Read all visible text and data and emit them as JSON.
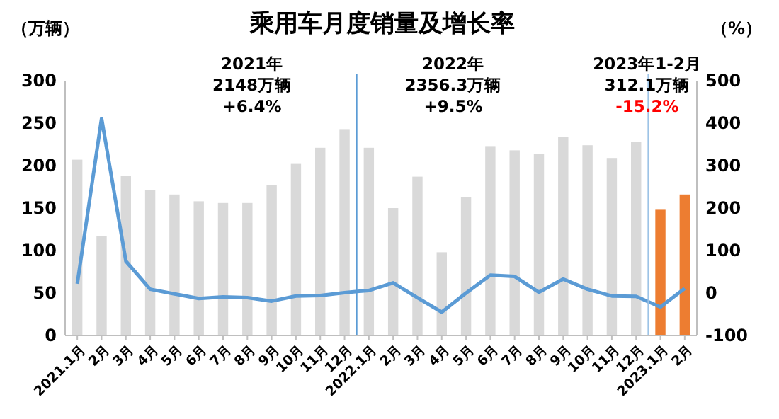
{
  "chart_data": {
    "type": "bar",
    "title": "乘用车月度销量及增长率",
    "ylabel": "（万辆）",
    "y2label": "（%）",
    "categories": [
      "2021.1月",
      "2月",
      "3月",
      "4月",
      "5月",
      "6月",
      "7月",
      "8月",
      "9月",
      "10月",
      "11月",
      "12月",
      "2022.1月",
      "2月",
      "3月",
      "4月",
      "5月",
      "6月",
      "7月",
      "8月",
      "9月",
      "10月",
      "11月",
      "12月",
      "2023.1月",
      "2月"
    ],
    "series": [
      {
        "values": [
          207,
          117,
          188,
          171,
          166,
          158,
          156,
          156,
          177,
          202,
          221,
          243,
          221,
          150,
          187,
          98,
          163,
          223,
          218,
          214,
          234,
          224,
          209,
          228,
          148,
          166
        ],
        "colors": [
          "#d9d9d9",
          "#d9d9d9",
          "#d9d9d9",
          "#d9d9d9",
          "#d9d9d9",
          "#d9d9d9",
          "#d9d9d9",
          "#d9d9d9",
          "#d9d9d9",
          "#d9d9d9",
          "#d9d9d9",
          "#d9d9d9",
          "#d9d9d9",
          "#d9d9d9",
          "#d9d9d9",
          "#d9d9d9",
          "#d9d9d9",
          "#d9d9d9",
          "#d9d9d9",
          "#d9d9d9",
          "#d9d9d9",
          "#d9d9d9",
          "#d9d9d9",
          "#d9d9d9",
          "#ed7d31",
          "#ed7d31"
        ]
      },
      {
        "type": "line",
        "axis": "y2",
        "color": "#5b9bd5",
        "values": [
          22,
          411,
          75,
          9,
          -2,
          -13,
          -9,
          -11,
          -19,
          -7,
          -6,
          1,
          6,
          24,
          -11,
          -45,
          0,
          42,
          39,
          2,
          33,
          9,
          -7,
          -8,
          -33,
          11
        ]
      }
    ],
    "ylim": [
      0,
      300
    ],
    "yticks": [
      0,
      50,
      100,
      150,
      200,
      250,
      300
    ],
    "y2lim": [
      -100,
      500
    ],
    "y2ticks": [
      -100,
      0,
      100,
      200,
      300,
      400,
      500
    ],
    "ref_lines": [
      {
        "axis": "x",
        "value": "2022.1月",
        "color": "#5b9bd5"
      },
      {
        "axis": "x",
        "value": "2023.1月",
        "color": "#9dc3e6"
      }
    ],
    "annotations": [
      "2021年\n2148万辆\n+6.4%",
      "2022年\n2356.3万辆\n+9.5%",
      "2023年1-2月\n312.1万辆",
      "-15.2%"
    ],
    "grid": false,
    "marker": "none",
    "line_style": "solid"
  }
}
